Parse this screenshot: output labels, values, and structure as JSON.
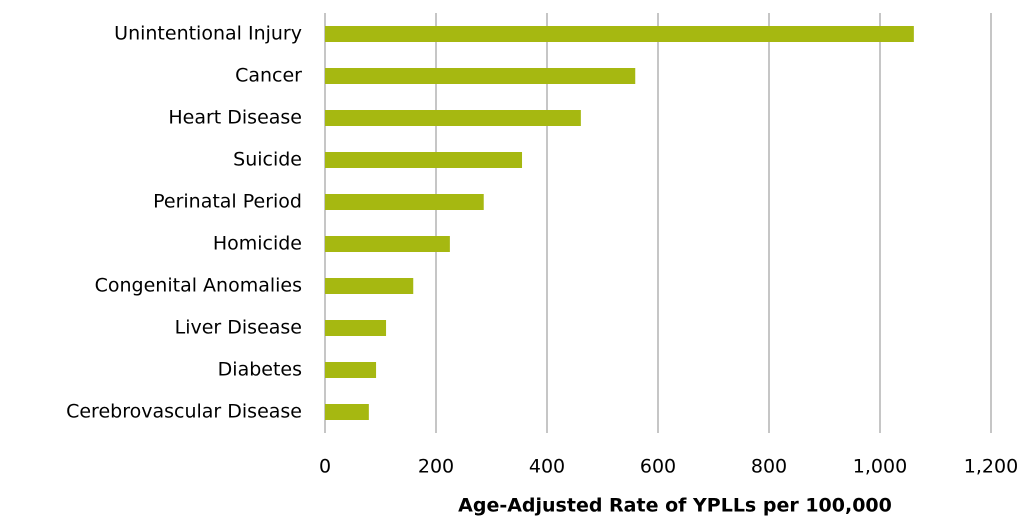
{
  "chart_data": {
    "type": "bar",
    "orientation": "horizontal",
    "categories": [
      "Unintentional Injury",
      "Cancer",
      "Heart Disease",
      "Suicide",
      "Perinatal Period",
      "Homicide",
      "Congenital Anomalies",
      "Liver Disease",
      "Diabetes",
      "Cerebrovascular Disease"
    ],
    "values": [
      1061,
      559,
      461,
      355,
      286,
      225,
      159,
      110,
      92,
      79
    ],
    "color": "#a6b811",
    "x_label": "Age-Adjusted Rate of YPLLs per 100,000",
    "xlim": [
      0,
      1200
    ],
    "xticks": [
      0,
      200,
      400,
      600,
      800,
      {
        "value": 1000,
        "label": "1,000"
      },
      {
        "value": 1200,
        "label": "1,200"
      }
    ],
    "grid": true
  }
}
